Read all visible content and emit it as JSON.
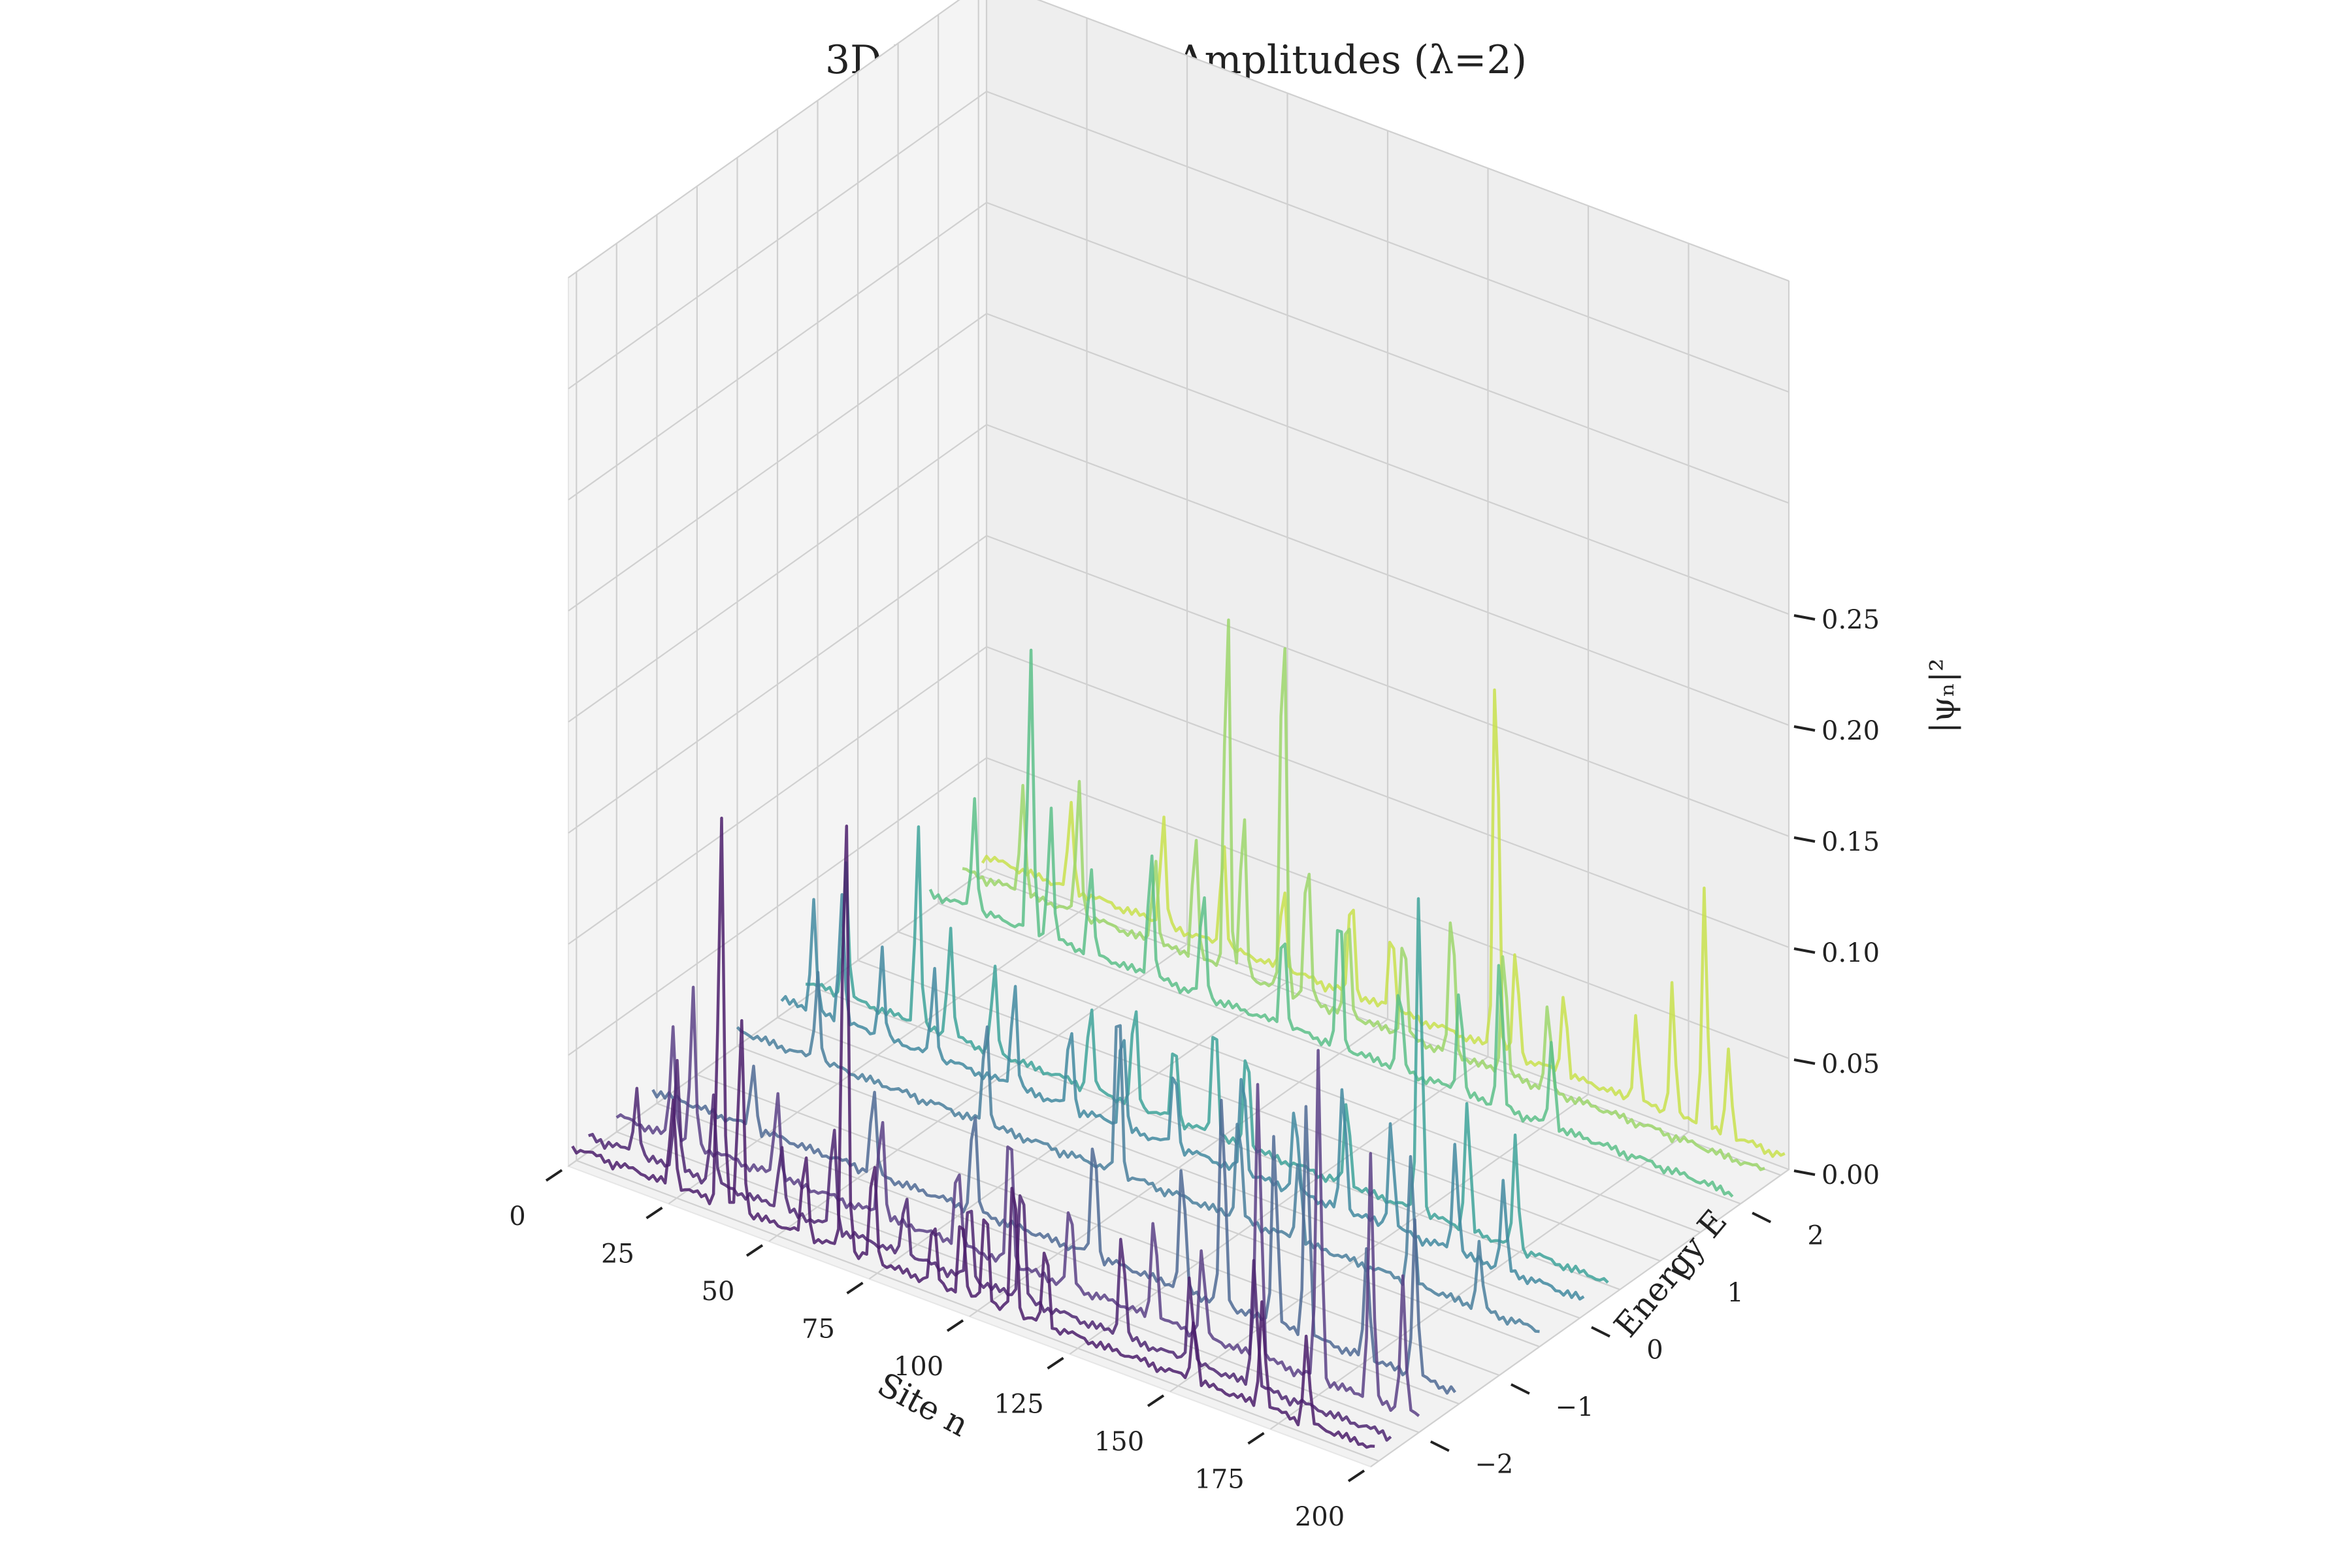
{
  "chart_data": {
    "type": "line",
    "subtype": "3d-waterfall",
    "title": "3D Wavefunction Amplitudes (λ=2)",
    "xlabel": "Site n",
    "ylabel": "Energy E",
    "zlabel": "|ψₙ|²",
    "xlim": [
      0,
      200
    ],
    "ylim": [
      -2.6,
      2.6
    ],
    "zlim": [
      0,
      0.25
    ],
    "x_ticks": [
      "0",
      "25",
      "50",
      "75",
      "100",
      "125",
      "150",
      "175",
      "200"
    ],
    "y_ticks": [
      "−2",
      "−1",
      "0",
      "1",
      "2"
    ],
    "z_ticks": [
      "0.00",
      "0.05",
      "0.10",
      "0.15",
      "0.20",
      "0.25"
    ],
    "grid": true,
    "colormap": "viridis",
    "n_points": 200,
    "series": [
      {
        "energy": -2.55,
        "color": "#4b1d6b",
        "peaks": [
          [
            25,
            0.04
          ],
          [
            37,
            0.18
          ],
          [
            42,
            0.09
          ],
          [
            58,
            0.04
          ],
          [
            68,
            0.22
          ],
          [
            75,
            0.05
          ],
          [
            90,
            0.03
          ],
          [
            97,
            0.04
          ],
          [
            103,
            0.05
          ],
          [
            110,
            0.07
          ],
          [
            118,
            0.04
          ],
          [
            155,
            0.03
          ],
          [
            172,
            0.05
          ],
          [
            183,
            0.04
          ]
        ]
      },
      {
        "energy": -2.35,
        "color": "#4e2772",
        "peaks": [
          [
            12,
            0.03
          ],
          [
            22,
            0.05
          ],
          [
            31,
            0.04
          ],
          [
            48,
            0.03
          ],
          [
            61,
            0.05
          ],
          [
            79,
            0.03
          ],
          [
            95,
            0.04
          ],
          [
            108,
            0.06
          ],
          [
            133,
            0.05
          ],
          [
            150,
            0.04
          ],
          [
            166,
            0.06
          ]
        ]
      },
      {
        "energy": -2.0,
        "color": "#5b4186",
        "peaks": [
          [
            14,
            0.05
          ],
          [
            19,
            0.07
          ],
          [
            40,
            0.04
          ],
          [
            66,
            0.05
          ],
          [
            85,
            0.04
          ],
          [
            98,
            0.07
          ],
          [
            113,
            0.04
          ],
          [
            134,
            0.05
          ],
          [
            146,
            0.04
          ],
          [
            160,
            0.13
          ],
          [
            175,
            0.15
          ],
          [
            188,
            0.11
          ],
          [
            196,
            0.06
          ]
        ]
      },
      {
        "energy": -1.55,
        "color": "#4f6a94",
        "peaks": [
          [
            25,
            0.03
          ],
          [
            55,
            0.04
          ],
          [
            80,
            0.05
          ],
          [
            110,
            0.06
          ],
          [
            132,
            0.06
          ],
          [
            142,
            0.1
          ],
          [
            155,
            0.09
          ],
          [
            163,
            0.11
          ],
          [
            178,
            0.05
          ],
          [
            190,
            0.07
          ]
        ]
      },
      {
        "energy": -0.5,
        "color": "#4a7f9c",
        "peaks": [
          [
            20,
            0.04
          ],
          [
            62,
            0.05
          ],
          [
            95,
            0.09
          ],
          [
            125,
            0.05
          ],
          [
            140,
            0.04
          ],
          [
            168,
            0.06
          ],
          [
            185,
            0.03
          ]
        ]
      },
      {
        "energy": 0.05,
        "color": "#428aa0",
        "peaks": [
          [
            8,
            0.05
          ],
          [
            15,
            0.06
          ],
          [
            25,
            0.04
          ],
          [
            38,
            0.04
          ],
          [
            58,
            0.05
          ],
          [
            72,
            0.04
          ],
          [
            85,
            0.05
          ],
          [
            98,
            0.04
          ],
          [
            115,
            0.05
          ],
          [
            128,
            0.04
          ],
          [
            140,
            0.06
          ],
          [
            152,
            0.05
          ],
          [
            168,
            0.05
          ],
          [
            180,
            0.04
          ]
        ]
      },
      {
        "energy": 0.35,
        "color": "#3ea39a",
        "peaks": [
          [
            10,
            0.06
          ],
          [
            28,
            0.09
          ],
          [
            36,
            0.05
          ],
          [
            47,
            0.04
          ],
          [
            71,
            0.04
          ],
          [
            82,
            0.05
          ],
          [
            92,
            0.04
          ],
          [
            102,
            0.06
          ],
          [
            110,
            0.05
          ],
          [
            135,
            0.04
          ],
          [
            153,
            0.15
          ],
          [
            165,
            0.06
          ],
          [
            177,
            0.05
          ]
        ]
      },
      {
        "energy": 1.9,
        "color": "#5cbf88",
        "peaks": [
          [
            11,
            0.05
          ],
          [
            25,
            0.13
          ],
          [
            30,
            0.06
          ],
          [
            40,
            0.04
          ],
          [
            55,
            0.06
          ],
          [
            68,
            0.05
          ],
          [
            88,
            0.05
          ],
          [
            102,
            0.07
          ],
          [
            117,
            0.04
          ],
          [
            132,
            0.05
          ],
          [
            142,
            0.07
          ],
          [
            155,
            0.04
          ]
        ]
      },
      {
        "energy": 2.3,
        "color": "#9cd66b",
        "peaks": [
          [
            15,
            0.05
          ],
          [
            29,
            0.06
          ],
          [
            48,
            0.04
          ],
          [
            58,
            0.06
          ],
          [
            66,
            0.18
          ],
          [
            70,
            0.08
          ],
          [
            80,
            0.19
          ],
          [
            86,
            0.07
          ],
          [
            96,
            0.05
          ],
          [
            110,
            0.05
          ],
          [
            122,
            0.07
          ],
          [
            135,
            0.06
          ],
          [
            146,
            0.04
          ]
        ]
      },
      {
        "energy": 2.55,
        "color": "#c8e04c",
        "peaks": [
          [
            22,
            0.04
          ],
          [
            45,
            0.05
          ],
          [
            60,
            0.05
          ],
          [
            75,
            0.04
          ],
          [
            92,
            0.05
          ],
          [
            102,
            0.04
          ],
          [
            128,
            0.19
          ],
          [
            133,
            0.05
          ],
          [
            145,
            0.04
          ],
          [
            163,
            0.04
          ],
          [
            172,
            0.06
          ],
          [
            180,
            0.11
          ],
          [
            186,
            0.04
          ]
        ]
      }
    ]
  }
}
